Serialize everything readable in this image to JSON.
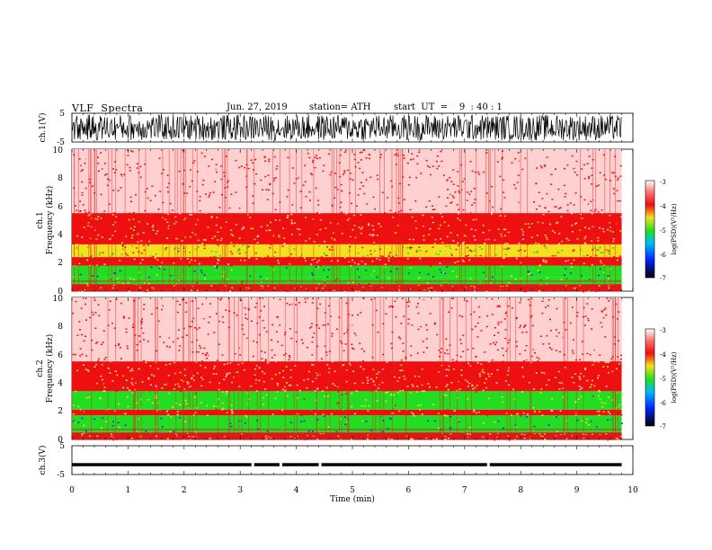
{
  "header": {
    "title": "VLF  Spectra",
    "date": "Jun. 27, 2019",
    "station": "station= ATH",
    "start": "start  UT  =    9  : 40 : 1"
  },
  "chart_data": [
    {
      "type": "line",
      "name": "ch1-waveform",
      "ylabel": "ch.1(V)",
      "ylim": [
        -5,
        5
      ],
      "yticks": [
        "5",
        "-5"
      ],
      "description_values": {
        "amplitude_range_V": [
          -4.5,
          4.5
        ]
      }
    },
    {
      "type": "heatmap",
      "name": "ch1-spectrogram",
      "ylabel_top": "ch.1",
      "ylabel": "Frequency (kHz)",
      "ylim": [
        0,
        10
      ],
      "yticks": [
        "0",
        "2",
        "4",
        "6",
        "8",
        "10"
      ],
      "colorbar": {
        "label": "log(PSD)(V²/Hz)",
        "range": [
          -7,
          -3
        ],
        "ticks": [
          "-3",
          "-4",
          "-5",
          "-6",
          "-7"
        ]
      },
      "bands_kHz": [
        {
          "from": 0,
          "to": 0.5,
          "level": -4.0
        },
        {
          "from": 0.5,
          "to": 1.0,
          "level": -4.6
        },
        {
          "from": 1.0,
          "to": 1.8,
          "level": -5.0
        },
        {
          "from": 1.8,
          "to": 2.4,
          "level": -4.0
        },
        {
          "from": 2.4,
          "to": 3.3,
          "level": -4.4
        },
        {
          "from": 3.3,
          "to": 5.5,
          "level": -4.0
        },
        {
          "from": 5.5,
          "to": 10,
          "level": -3.6
        }
      ]
    },
    {
      "type": "heatmap",
      "name": "ch2-spectrogram",
      "ylabel_top": "ch.2",
      "ylabel": "Frequency (kHz)",
      "ylim": [
        0,
        10
      ],
      "yticks": [
        "0",
        "2",
        "4",
        "6",
        "8",
        "10"
      ],
      "colorbar": {
        "label": "log(PSD)(V²/Hz)",
        "range": [
          -7,
          -3
        ],
        "ticks": [
          "-3",
          "-4",
          "-5",
          "-6",
          "-7"
        ]
      },
      "bands_kHz": [
        {
          "from": 0,
          "to": 0.5,
          "level": -4.0
        },
        {
          "from": 0.5,
          "to": 1.7,
          "level": -5.0
        },
        {
          "from": 1.7,
          "to": 2.1,
          "level": -4.0
        },
        {
          "from": 2.1,
          "to": 3.4,
          "level": -4.7
        },
        {
          "from": 3.4,
          "to": 5.5,
          "level": -3.9
        },
        {
          "from": 5.5,
          "to": 10,
          "level": -3.6
        }
      ]
    },
    {
      "type": "line",
      "name": "ch3-waveform",
      "ylabel": "ch.3(V)",
      "ylim": [
        -5,
        5
      ],
      "yticks": [
        "5",
        "-5"
      ],
      "description_values": {
        "level_V": -1.5
      }
    }
  ],
  "x_axis": {
    "label": "Time  (min)",
    "range": [
      0,
      10
    ],
    "ticks": [
      "0",
      "1",
      "2",
      "3",
      "4",
      "5",
      "6",
      "7",
      "8",
      "9",
      "10"
    ],
    "data_end_min": 9.8
  },
  "colors": {
    "white": "#ffffff",
    "red": "#ee1010",
    "yellow": "#f4e020",
    "green": "#22dd22",
    "blue": "#0030ff",
    "black": "#000000"
  }
}
